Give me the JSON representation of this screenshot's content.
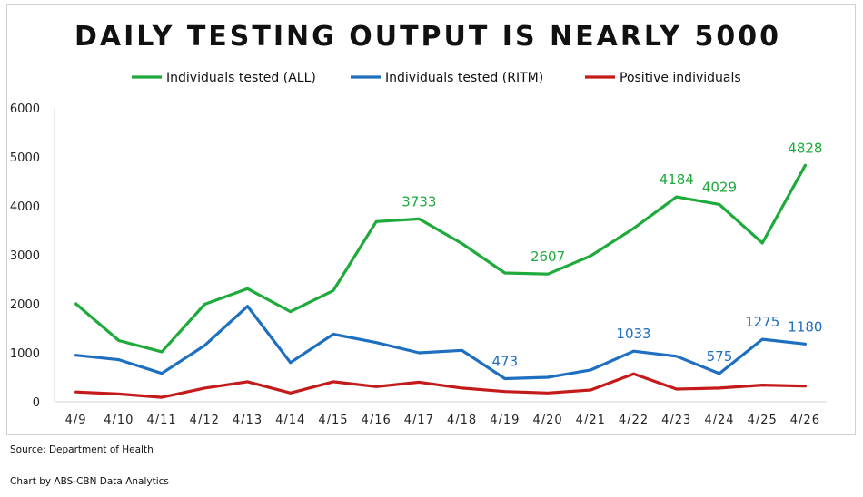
{
  "chart_data": {
    "type": "line",
    "title": "DAILY TESTING OUTPUT IS NEARLY 5000",
    "categories": [
      "4/9",
      "4/10",
      "4/11",
      "4/12",
      "4/13",
      "4/14",
      "4/15",
      "4/16",
      "4/17",
      "4/18",
      "4/19",
      "4/20",
      "4/21",
      "4/22",
      "4/23",
      "4/24",
      "4/25",
      "4/26"
    ],
    "ylim": [
      0,
      6000
    ],
    "yticks": [
      0,
      1000,
      2000,
      3000,
      4000,
      5000,
      6000
    ],
    "grid": false,
    "legend_position": "top",
    "series": [
      {
        "name": "Individuals tested (ALL)",
        "color": "#1faa3c",
        "values": [
          2000,
          1250,
          1020,
          1990,
          2310,
          1840,
          2270,
          3680,
          3733,
          3230,
          2630,
          2607,
          2980,
          3540,
          4184,
          4029,
          3240,
          4828
        ],
        "labels": {
          "8": "3733",
          "11": "2607",
          "14": "4184",
          "15": "4029",
          "17": "4828"
        }
      },
      {
        "name": "Individuals tested (RITM)",
        "color": "#1e6fbf",
        "values": [
          950,
          860,
          580,
          1150,
          1950,
          800,
          1380,
          1210,
          1000,
          1050,
          473,
          500,
          650,
          1033,
          930,
          575,
          1275,
          1180
        ],
        "labels": {
          "10": "473",
          "13": "1033",
          "15": "575",
          "16": "1275",
          "17": "1180"
        }
      },
      {
        "name": "Positive individuals",
        "color": "#c41a1a",
        "values": [
          200,
          160,
          90,
          280,
          410,
          180,
          410,
          310,
          400,
          280,
          210,
          180,
          240,
          570,
          260,
          280,
          340,
          320
        ],
        "labels": {}
      }
    ]
  },
  "footer": {
    "source": "Source: Department of Health",
    "credit": "Chart by ABS-CBN Data Analytics"
  }
}
